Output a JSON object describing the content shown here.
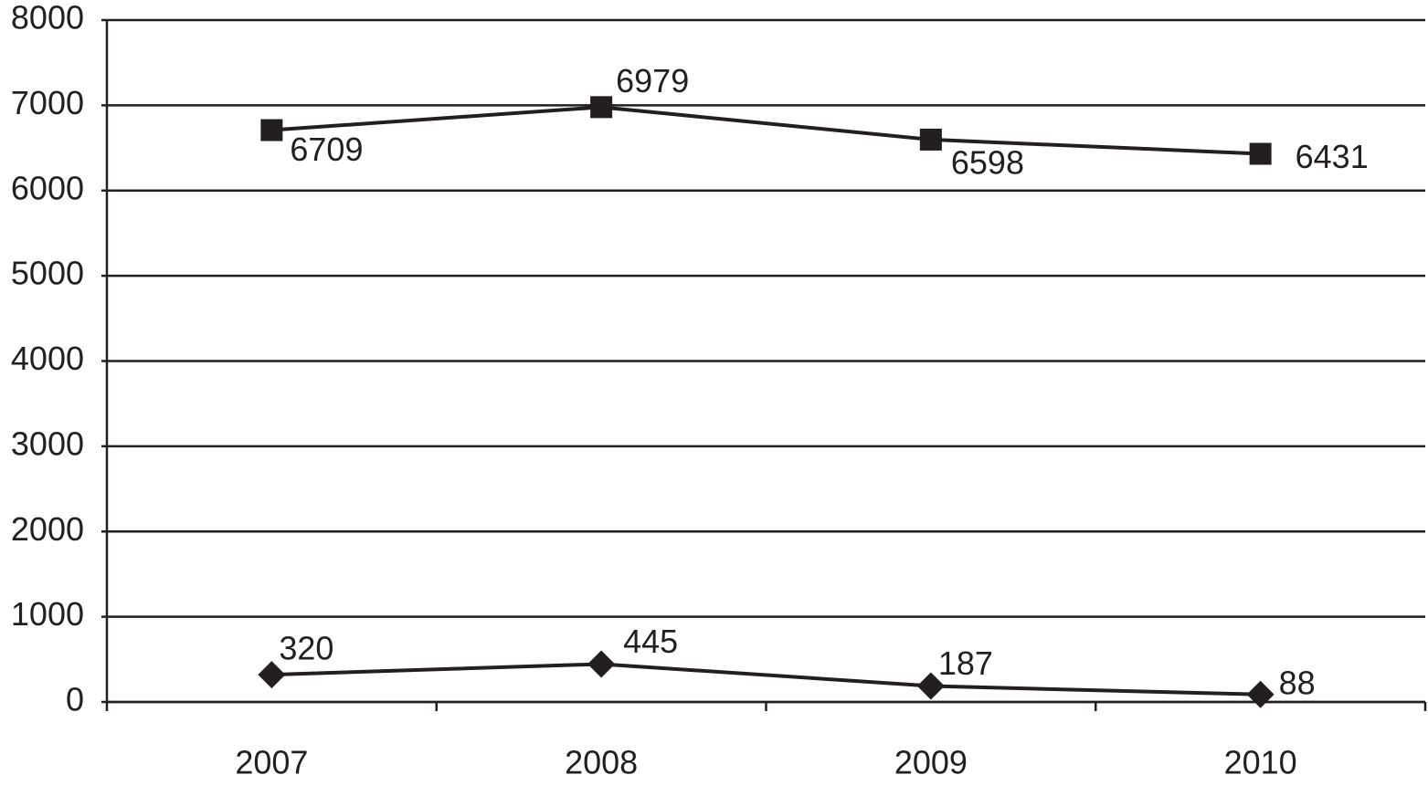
{
  "chart_data": {
    "type": "line",
    "categories": [
      "2007",
      "2008",
      "2009",
      "2010"
    ],
    "series": [
      {
        "color": "#231f20",
        "marker": "square",
        "values": [
          6709,
          6979,
          6598,
          6431
        ]
      },
      {
        "color": "#231f20",
        "marker": "diamond",
        "values": [
          320,
          445,
          187,
          88
        ]
      }
    ],
    "ylim": [
      0,
      8000
    ],
    "yticks": [
      0,
      1000,
      2000,
      3000,
      4000,
      5000,
      6000,
      7000,
      8000
    ],
    "grid": true
  }
}
